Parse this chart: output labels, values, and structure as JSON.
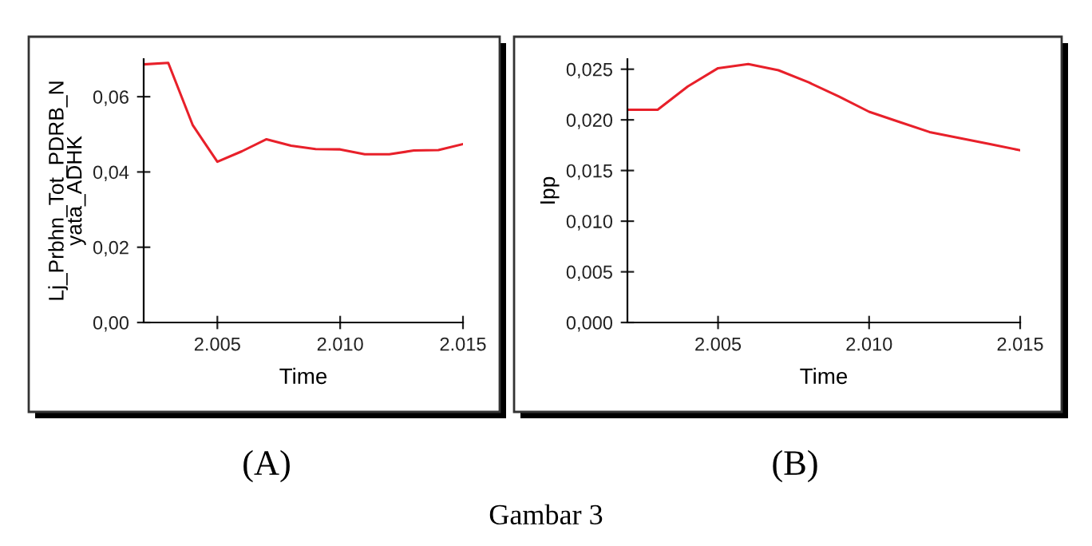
{
  "chart_data": [
    {
      "type": "line",
      "xlabel": "Time",
      "ylabel": "Lj_Prbhn_Tot_PDRB_Nyata_ADHK",
      "annotations": [
        "(A)"
      ],
      "x": [
        2002,
        2003,
        2004,
        2005,
        2006,
        2007,
        2008,
        2009,
        2010,
        2011,
        2012,
        2013,
        2014,
        2015
      ],
      "series": [
        {
          "color": "#e8202a",
          "values": [
            0.0686,
            0.069,
            0.0524,
            0.0427,
            0.0455,
            0.0487,
            0.047,
            0.0461,
            0.046,
            0.0447,
            0.0447,
            0.0457,
            0.0458,
            0.0474
          ]
        }
      ],
      "xlim": [
        2002,
        2015
      ],
      "ylim": [
        0,
        0.07
      ],
      "xticks": [
        {
          "value": 2005,
          "label": "2.005"
        },
        {
          "value": 2010,
          "label": "2.010"
        },
        {
          "value": 2015,
          "label": "2.015"
        }
      ],
      "yticks": [
        {
          "value": 0,
          "label": "0,00"
        },
        {
          "value": 0.02,
          "label": "0,02"
        },
        {
          "value": 0.04,
          "label": "0,04"
        },
        {
          "value": 0.06,
          "label": "0,06"
        }
      ],
      "grid": false
    },
    {
      "type": "line",
      "xlabel": "Time",
      "ylabel": "Ipp",
      "annotations": [
        "(B)",
        "Gambar 3"
      ],
      "x": [
        2002,
        2003,
        2004,
        2005,
        2006,
        2007,
        2008,
        2009,
        2010,
        2011,
        2012,
        2013,
        2014,
        2015
      ],
      "series": [
        {
          "color": "#e8202a",
          "values": [
            0.021,
            0.021,
            0.0233,
            0.0251,
            0.0255,
            0.0249,
            0.0237,
            0.0223,
            0.0208,
            0.0198,
            0.0188,
            0.0182,
            0.0176,
            0.017
          ]
        }
      ],
      "xlim": [
        2002,
        2015
      ],
      "ylim": [
        0,
        0.026
      ],
      "xticks": [
        {
          "value": 2005,
          "label": "2.005"
        },
        {
          "value": 2010,
          "label": "2.010"
        },
        {
          "value": 2015,
          "label": "2.015"
        }
      ],
      "yticks": [
        {
          "value": 0,
          "label": "0,000"
        },
        {
          "value": 0.005,
          "label": "0,005"
        },
        {
          "value": 0.01,
          "label": "0,010"
        },
        {
          "value": 0.015,
          "label": "0,015"
        },
        {
          "value": 0.02,
          "label": "0,020"
        },
        {
          "value": 0.025,
          "label": "0,025"
        }
      ],
      "grid": false
    }
  ]
}
